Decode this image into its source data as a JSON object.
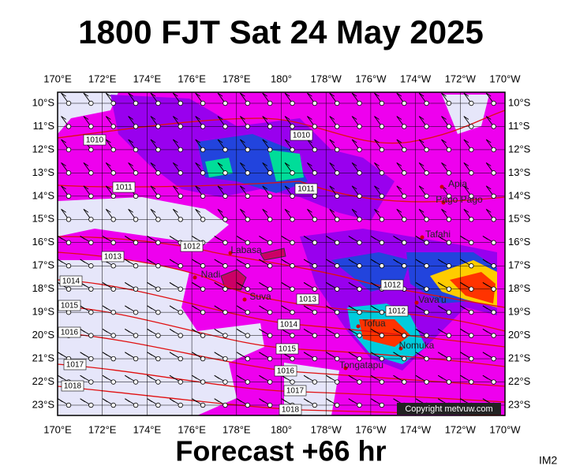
{
  "title": "1800 FJT Sat 24 May 2025",
  "footer": "Forecast +66 hr",
  "corner_label": "IM2",
  "copyright": "Copyright metvuw.com",
  "longitude_labels": [
    "170°E",
    "172°E",
    "174°E",
    "176°E",
    "178°E",
    "180°",
    "178°W",
    "176°W",
    "174°W",
    "172°W",
    "170°W"
  ],
  "latitude_labels": [
    "10°S",
    "11°S",
    "12°S",
    "13°S",
    "14°S",
    "15°S",
    "16°S",
    "17°S",
    "18°S",
    "19°S",
    "20°S",
    "21°S",
    "22°S",
    "23°S"
  ],
  "places": [
    "Labasa",
    "Nadi",
    "Suva",
    "Apia",
    "Pago Pago",
    "Tafahi",
    "Vava'u",
    "Tofua",
    "Nomuka",
    "Tongatapu"
  ],
  "isobar_labels": [
    "1010",
    "1010",
    "1011",
    "1011",
    "1012",
    "1012",
    "1012",
    "1013",
    "1013",
    "1014",
    "1014",
    "1015",
    "1015",
    "1016",
    "1016",
    "1017",
    "1017",
    "1018",
    "1018"
  ]
}
